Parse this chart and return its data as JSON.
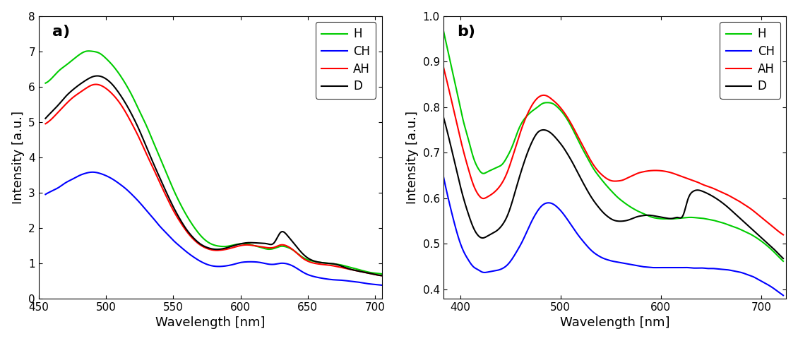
{
  "panel_a": {
    "xlim": [
      450,
      705
    ],
    "ylim": [
      0,
      8
    ],
    "xlabel": "Wavelength [nm]",
    "ylabel": "Intensity [a.u.]",
    "label": "a)",
    "xticks": [
      450,
      500,
      550,
      600,
      650,
      700
    ],
    "yticks": [
      0,
      1,
      2,
      3,
      4,
      5,
      6,
      7,
      8
    ],
    "H": {
      "color": "#00CC00",
      "x": [
        455,
        460,
        465,
        470,
        475,
        480,
        485,
        490,
        495,
        500,
        505,
        510,
        515,
        520,
        525,
        530,
        535,
        540,
        545,
        550,
        555,
        560,
        565,
        570,
        575,
        580,
        585,
        590,
        595,
        600,
        605,
        610,
        615,
        620,
        625,
        630,
        635,
        640,
        645,
        650,
        655,
        660,
        665,
        670,
        675,
        680,
        685,
        690,
        695,
        700,
        705
      ],
      "y": [
        6.1,
        6.25,
        6.45,
        6.6,
        6.75,
        6.9,
        7.0,
        7.0,
        6.95,
        6.8,
        6.6,
        6.35,
        6.05,
        5.7,
        5.3,
        4.9,
        4.45,
        4.0,
        3.55,
        3.1,
        2.7,
        2.35,
        2.05,
        1.8,
        1.62,
        1.52,
        1.48,
        1.48,
        1.52,
        1.55,
        1.55,
        1.5,
        1.45,
        1.4,
        1.42,
        1.48,
        1.45,
        1.35,
        1.2,
        1.1,
        1.05,
        1.02,
        1.0,
        0.98,
        0.95,
        0.9,
        0.85,
        0.8,
        0.75,
        0.72,
        0.7
      ]
    },
    "CH": {
      "color": "#0000FF",
      "x": [
        455,
        460,
        465,
        470,
        475,
        480,
        485,
        490,
        495,
        500,
        505,
        510,
        515,
        520,
        525,
        530,
        535,
        540,
        545,
        550,
        555,
        560,
        565,
        570,
        575,
        580,
        585,
        590,
        595,
        600,
        605,
        610,
        615,
        620,
        625,
        630,
        635,
        640,
        645,
        650,
        655,
        660,
        665,
        670,
        675,
        680,
        685,
        690,
        695,
        700,
        705
      ],
      "y": [
        2.95,
        3.05,
        3.15,
        3.28,
        3.38,
        3.48,
        3.55,
        3.58,
        3.55,
        3.48,
        3.38,
        3.25,
        3.1,
        2.92,
        2.72,
        2.5,
        2.28,
        2.05,
        1.85,
        1.65,
        1.48,
        1.32,
        1.18,
        1.06,
        0.97,
        0.92,
        0.91,
        0.93,
        0.97,
        1.02,
        1.04,
        1.04,
        1.02,
        0.98,
        0.97,
        1.0,
        0.98,
        0.9,
        0.78,
        0.68,
        0.62,
        0.58,
        0.55,
        0.53,
        0.52,
        0.5,
        0.48,
        0.45,
        0.42,
        0.4,
        0.38
      ]
    },
    "AH": {
      "color": "#FF0000",
      "x": [
        455,
        460,
        465,
        470,
        475,
        480,
        485,
        490,
        495,
        500,
        505,
        510,
        515,
        520,
        525,
        530,
        535,
        540,
        545,
        550,
        555,
        560,
        565,
        570,
        575,
        580,
        585,
        590,
        595,
        600,
        605,
        610,
        615,
        620,
        625,
        630,
        635,
        640,
        645,
        650,
        655,
        660,
        665,
        670,
        675,
        680,
        685,
        690,
        695,
        700,
        705
      ],
      "y": [
        4.95,
        5.1,
        5.3,
        5.5,
        5.68,
        5.82,
        5.95,
        6.05,
        6.05,
        5.95,
        5.78,
        5.55,
        5.25,
        4.9,
        4.52,
        4.1,
        3.7,
        3.28,
        2.88,
        2.5,
        2.18,
        1.9,
        1.68,
        1.52,
        1.42,
        1.37,
        1.37,
        1.4,
        1.45,
        1.5,
        1.52,
        1.5,
        1.47,
        1.44,
        1.45,
        1.52,
        1.48,
        1.35,
        1.18,
        1.06,
        1.0,
        0.97,
        0.95,
        0.92,
        0.88,
        0.84,
        0.8,
        0.76,
        0.72,
        0.68,
        0.65
      ]
    },
    "D": {
      "color": "#000000",
      "x": [
        455,
        460,
        465,
        470,
        475,
        480,
        485,
        490,
        495,
        500,
        505,
        510,
        515,
        520,
        525,
        530,
        535,
        540,
        545,
        550,
        555,
        560,
        565,
        570,
        575,
        580,
        585,
        590,
        595,
        600,
        605,
        610,
        615,
        620,
        625,
        630,
        635,
        640,
        645,
        650,
        655,
        660,
        665,
        670,
        675,
        680,
        685,
        690,
        695,
        700,
        705
      ],
      "y": [
        5.1,
        5.3,
        5.5,
        5.72,
        5.9,
        6.05,
        6.18,
        6.28,
        6.3,
        6.22,
        6.05,
        5.8,
        5.5,
        5.15,
        4.75,
        4.3,
        3.85,
        3.42,
        3.0,
        2.6,
        2.25,
        1.95,
        1.72,
        1.55,
        1.45,
        1.4,
        1.4,
        1.44,
        1.5,
        1.55,
        1.58,
        1.58,
        1.57,
        1.55,
        1.58,
        1.88,
        1.78,
        1.55,
        1.32,
        1.15,
        1.06,
        1.02,
        1.0,
        0.98,
        0.92,
        0.85,
        0.8,
        0.76,
        0.72,
        0.68,
        0.65
      ]
    }
  },
  "panel_b": {
    "xlim": [
      383,
      725
    ],
    "ylim": [
      0.38,
      1.0
    ],
    "xlabel": "Wavelength [nm]",
    "ylabel": "Intensity [a.u.]",
    "label": "b)",
    "xticks": [
      400,
      500,
      600,
      700
    ],
    "yticks": [
      0.4,
      0.5,
      0.6,
      0.7,
      0.8,
      0.9,
      1.0
    ],
    "H": {
      "color": "#00CC00",
      "x": [
        383,
        388,
        393,
        398,
        403,
        408,
        413,
        418,
        422,
        427,
        432,
        437,
        442,
        447,
        452,
        457,
        462,
        467,
        472,
        477,
        482,
        487,
        492,
        497,
        502,
        507,
        512,
        517,
        522,
        527,
        532,
        537,
        542,
        547,
        552,
        557,
        562,
        567,
        572,
        577,
        582,
        587,
        592,
        597,
        602,
        607,
        612,
        617,
        622,
        627,
        632,
        637,
        642,
        647,
        652,
        657,
        662,
        667,
        672,
        677,
        682,
        687,
        692,
        697,
        702,
        707,
        712,
        717,
        722
      ],
      "y": [
        0.97,
        0.92,
        0.87,
        0.82,
        0.77,
        0.73,
        0.69,
        0.665,
        0.655,
        0.658,
        0.663,
        0.668,
        0.675,
        0.692,
        0.715,
        0.745,
        0.768,
        0.782,
        0.792,
        0.8,
        0.808,
        0.81,
        0.808,
        0.8,
        0.788,
        0.772,
        0.752,
        0.73,
        0.708,
        0.688,
        0.668,
        0.652,
        0.638,
        0.625,
        0.613,
        0.602,
        0.593,
        0.585,
        0.578,
        0.572,
        0.567,
        0.562,
        0.558,
        0.556,
        0.555,
        0.555,
        0.555,
        0.556,
        0.557,
        0.558,
        0.558,
        0.557,
        0.556,
        0.554,
        0.552,
        0.549,
        0.546,
        0.542,
        0.538,
        0.534,
        0.529,
        0.524,
        0.518,
        0.511,
        0.503,
        0.494,
        0.484,
        0.473,
        0.462
      ]
    },
    "CH": {
      "color": "#0000FF",
      "x": [
        383,
        388,
        393,
        398,
        403,
        408,
        413,
        418,
        422,
        427,
        432,
        437,
        442,
        447,
        452,
        457,
        462,
        467,
        472,
        477,
        482,
        487,
        492,
        497,
        502,
        507,
        512,
        517,
        522,
        527,
        532,
        537,
        542,
        547,
        552,
        557,
        562,
        567,
        572,
        577,
        582,
        587,
        592,
        597,
        602,
        607,
        612,
        617,
        622,
        627,
        632,
        637,
        642,
        647,
        652,
        657,
        662,
        667,
        672,
        677,
        682,
        687,
        692,
        697,
        702,
        707,
        712,
        717,
        722
      ],
      "y": [
        0.65,
        0.6,
        0.555,
        0.515,
        0.485,
        0.465,
        0.45,
        0.443,
        0.438,
        0.438,
        0.44,
        0.442,
        0.446,
        0.454,
        0.468,
        0.486,
        0.506,
        0.53,
        0.553,
        0.572,
        0.585,
        0.59,
        0.588,
        0.58,
        0.568,
        0.553,
        0.537,
        0.521,
        0.507,
        0.494,
        0.483,
        0.475,
        0.469,
        0.465,
        0.462,
        0.46,
        0.458,
        0.456,
        0.454,
        0.452,
        0.45,
        0.449,
        0.448,
        0.448,
        0.448,
        0.448,
        0.448,
        0.448,
        0.448,
        0.448,
        0.447,
        0.447,
        0.447,
        0.446,
        0.446,
        0.445,
        0.444,
        0.443,
        0.441,
        0.439,
        0.436,
        0.432,
        0.428,
        0.422,
        0.416,
        0.41,
        0.403,
        0.395,
        0.387
      ]
    },
    "AH": {
      "color": "#FF0000",
      "x": [
        383,
        388,
        393,
        398,
        403,
        408,
        413,
        418,
        422,
        427,
        432,
        437,
        442,
        447,
        452,
        457,
        462,
        467,
        472,
        477,
        482,
        487,
        492,
        497,
        502,
        507,
        512,
        517,
        522,
        527,
        532,
        537,
        542,
        547,
        552,
        557,
        562,
        567,
        572,
        577,
        582,
        587,
        592,
        597,
        602,
        607,
        612,
        617,
        622,
        627,
        632,
        637,
        642,
        647,
        652,
        657,
        662,
        667,
        672,
        677,
        682,
        687,
        692,
        697,
        702,
        707,
        712,
        717,
        722
      ],
      "y": [
        0.89,
        0.845,
        0.798,
        0.75,
        0.705,
        0.665,
        0.63,
        0.608,
        0.6,
        0.603,
        0.61,
        0.62,
        0.635,
        0.658,
        0.69,
        0.725,
        0.758,
        0.785,
        0.806,
        0.82,
        0.826,
        0.824,
        0.816,
        0.806,
        0.793,
        0.777,
        0.758,
        0.737,
        0.716,
        0.695,
        0.676,
        0.661,
        0.65,
        0.642,
        0.638,
        0.638,
        0.64,
        0.645,
        0.65,
        0.655,
        0.658,
        0.66,
        0.661,
        0.661,
        0.66,
        0.658,
        0.655,
        0.651,
        0.647,
        0.643,
        0.639,
        0.635,
        0.63,
        0.626,
        0.622,
        0.617,
        0.612,
        0.607,
        0.601,
        0.595,
        0.588,
        0.581,
        0.573,
        0.564,
        0.555,
        0.546,
        0.537,
        0.528,
        0.52
      ]
    },
    "D": {
      "color": "#000000",
      "x": [
        383,
        388,
        393,
        398,
        403,
        408,
        413,
        418,
        422,
        427,
        432,
        437,
        442,
        447,
        452,
        457,
        462,
        467,
        472,
        477,
        482,
        487,
        492,
        497,
        502,
        507,
        512,
        517,
        522,
        527,
        532,
        537,
        542,
        547,
        552,
        557,
        562,
        567,
        572,
        577,
        582,
        587,
        592,
        597,
        602,
        607,
        612,
        617,
        622,
        627,
        632,
        637,
        642,
        647,
        652,
        657,
        662,
        667,
        672,
        677,
        682,
        687,
        692,
        697,
        702,
        707,
        712,
        717,
        722
      ],
      "y": [
        0.78,
        0.738,
        0.692,
        0.645,
        0.602,
        0.566,
        0.536,
        0.518,
        0.513,
        0.517,
        0.523,
        0.53,
        0.542,
        0.562,
        0.594,
        0.632,
        0.668,
        0.7,
        0.726,
        0.744,
        0.75,
        0.748,
        0.74,
        0.728,
        0.714,
        0.697,
        0.678,
        0.657,
        0.636,
        0.616,
        0.598,
        0.583,
        0.57,
        0.56,
        0.553,
        0.55,
        0.55,
        0.552,
        0.556,
        0.56,
        0.562,
        0.563,
        0.562,
        0.56,
        0.558,
        0.556,
        0.556,
        0.558,
        0.562,
        0.598,
        0.615,
        0.618,
        0.615,
        0.61,
        0.604,
        0.597,
        0.589,
        0.58,
        0.57,
        0.56,
        0.55,
        0.54,
        0.53,
        0.52,
        0.51,
        0.5,
        0.49,
        0.479,
        0.468
      ]
    }
  }
}
